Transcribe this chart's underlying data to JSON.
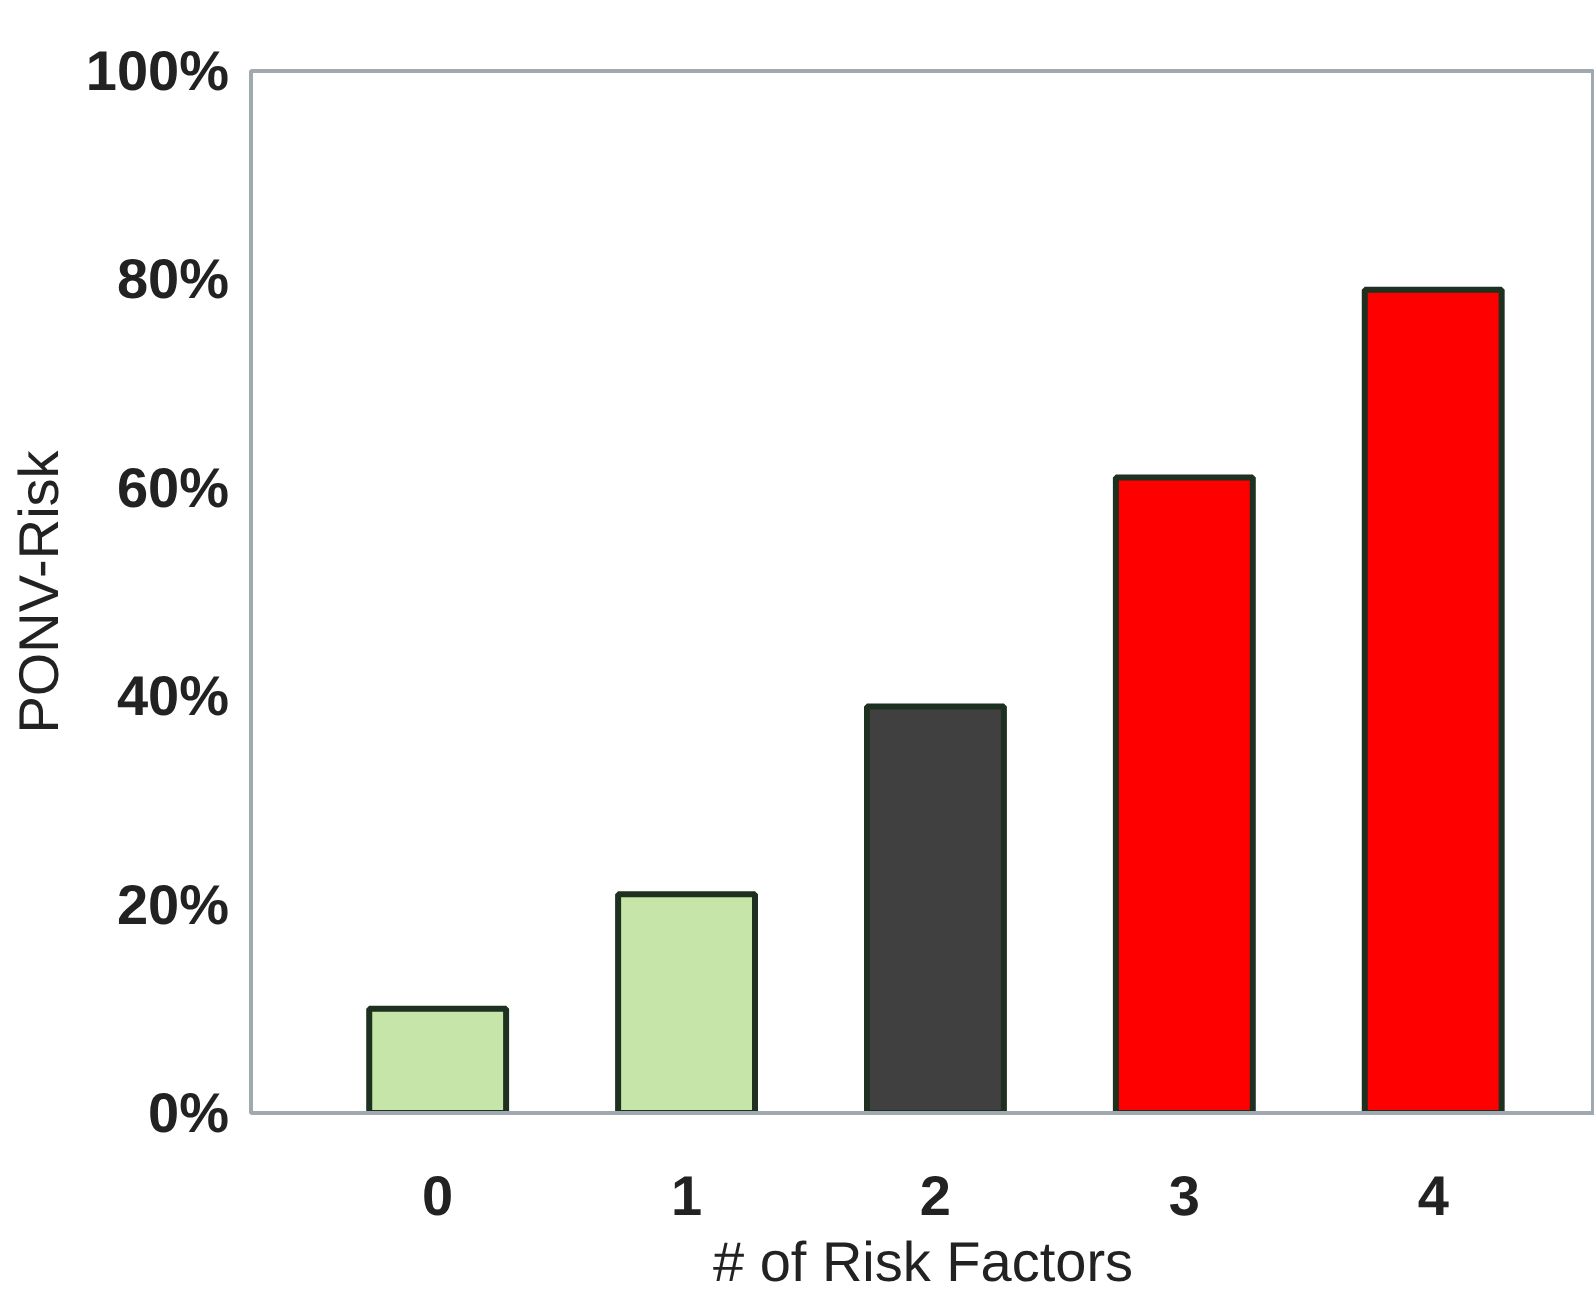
{
  "chart_data": {
    "type": "bar",
    "xlabel": "# of Risk Factors",
    "ylabel": "PONV-Risk",
    "categories": [
      "0",
      "1",
      "2",
      "3",
      "4"
    ],
    "values": [
      10,
      21,
      39,
      61,
      79
    ],
    "colors": [
      "#c6e5a8",
      "#c6e5a8",
      "#404040",
      "#ff0000",
      "#ff0000"
    ],
    "ylim": [
      0,
      100
    ],
    "yticks": [
      {
        "value": 0,
        "label": "0%"
      },
      {
        "value": 20,
        "label": "20%"
      },
      {
        "value": 40,
        "label": "40%"
      },
      {
        "value": 60,
        "label": "60%"
      },
      {
        "value": 80,
        "label": "80%"
      },
      {
        "value": 100,
        "label": "100%"
      }
    ],
    "grid": false
  }
}
